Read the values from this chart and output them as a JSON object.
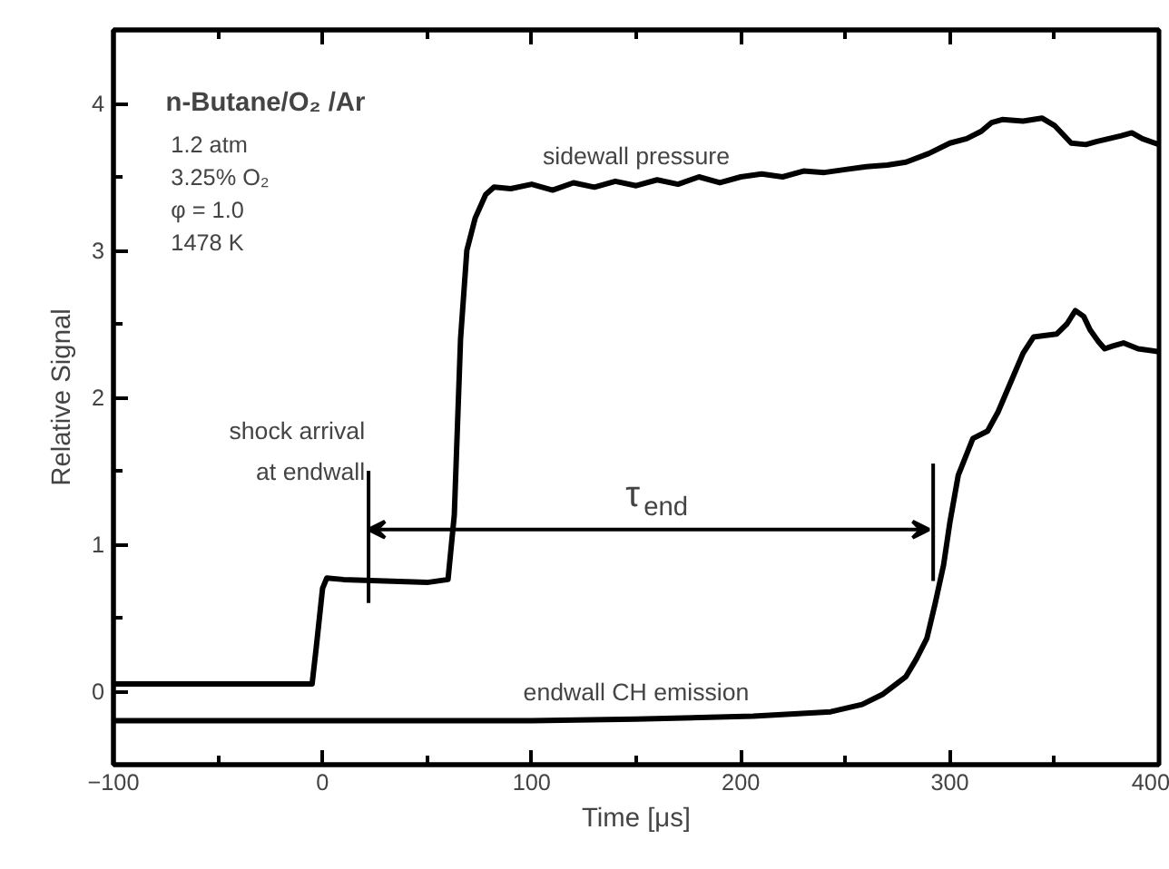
{
  "chart_data": {
    "type": "line",
    "title": "n-Butane/O₂ /Ar",
    "xlabel": "Time [μs]",
    "ylabel": "Relative Signal",
    "xlim": [
      -100,
      400
    ],
    "ylim": [
      -0.5,
      4.5
    ],
    "xticks": [
      -100,
      0,
      100,
      200,
      300,
      400
    ],
    "yticks": [
      0,
      1,
      2,
      3,
      4
    ],
    "grid": false,
    "marker": "none",
    "line_style": "solid",
    "series": [
      {
        "color": "#000000",
        "x": [
          -100,
          -5,
          -3,
          0,
          2,
          10,
          30,
          50,
          60,
          63,
          66,
          69,
          73,
          78,
          82,
          90,
          100,
          110,
          120,
          130,
          140,
          150,
          160,
          170,
          180,
          190,
          200,
          210,
          220,
          230,
          240,
          250,
          260,
          270,
          279,
          290,
          300,
          308,
          315,
          320,
          325,
          335,
          344,
          350,
          358,
          365,
          370,
          376,
          382,
          387,
          392,
          400
        ],
        "values": [
          0.05,
          0.05,
          0.3,
          0.7,
          0.77,
          0.76,
          0.75,
          0.74,
          0.76,
          1.2,
          2.4,
          3.0,
          3.22,
          3.38,
          3.43,
          3.42,
          3.45,
          3.41,
          3.46,
          3.43,
          3.47,
          3.44,
          3.48,
          3.45,
          3.5,
          3.46,
          3.5,
          3.52,
          3.5,
          3.54,
          3.53,
          3.55,
          3.57,
          3.58,
          3.6,
          3.66,
          3.73,
          3.76,
          3.81,
          3.87,
          3.89,
          3.88,
          3.9,
          3.85,
          3.73,
          3.72,
          3.74,
          3.76,
          3.78,
          3.8,
          3.76,
          3.72
        ]
      },
      {
        "color": "#000000",
        "x": [
          -100,
          0,
          100,
          150,
          206,
          243,
          258,
          268,
          279,
          284,
          289,
          293,
          297,
          300,
          304,
          311,
          318,
          323,
          329,
          335,
          340,
          345,
          351,
          356,
          360,
          364,
          367,
          371,
          374,
          378,
          383,
          390,
          400
        ],
        "values": [
          -0.2,
          -0.2,
          -0.2,
          -0.19,
          -0.17,
          -0.14,
          -0.09,
          -0.02,
          0.1,
          0.22,
          0.36,
          0.6,
          0.86,
          1.15,
          1.47,
          1.72,
          1.77,
          1.9,
          2.1,
          2.3,
          2.41,
          2.42,
          2.43,
          2.5,
          2.59,
          2.55,
          2.46,
          2.38,
          2.33,
          2.35,
          2.37,
          2.33,
          2.31
        ]
      }
    ],
    "annotations": [
      "1.2 atm",
      "3.25% O₂",
      "φ = 1.0",
      "1478 K",
      "sidewall pressure",
      "endwall CH emission",
      "τ$_{end}$"
    ],
    "ref_lines": [
      {
        "axis": "x",
        "value": 22,
        "label": "shock arrival\nat endwall",
        "color": "#000000"
      },
      {
        "axis": "x",
        "value": 292,
        "color": "#000000"
      }
    ]
  }
}
